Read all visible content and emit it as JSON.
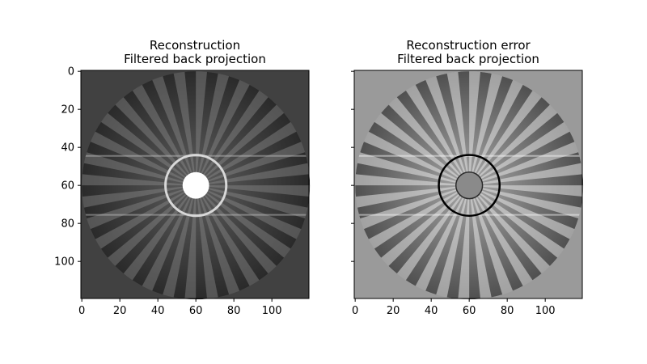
{
  "chart_data": [
    {
      "type": "heatmap",
      "title_line1": "Reconstruction",
      "title_line2": "Filtered back projection",
      "xticks": [
        0,
        20,
        40,
        60,
        80,
        100
      ],
      "yticks": [
        0,
        20,
        40,
        60,
        80,
        100
      ],
      "xlim": [
        -0.5,
        119.5
      ],
      "ylim": [
        119.5,
        -0.5
      ],
      "colormap": "gray",
      "image": {
        "size": 120,
        "disk_radius": 60,
        "background": "#414141",
        "spoke_count": 32,
        "center": [
          60,
          60
        ],
        "blob_radius": 7,
        "ring_radius": 16
      }
    },
    {
      "type": "heatmap",
      "title_line1": "Reconstruction error",
      "title_line2": "Filtered back projection",
      "xticks": [
        0,
        20,
        40,
        60,
        80,
        100
      ],
      "yticks": [
        0,
        20,
        40,
        60,
        80,
        100
      ],
      "xlim": [
        -0.5,
        119.5
      ],
      "ylim": [
        119.5,
        -0.5
      ],
      "colormap": "gray",
      "image": {
        "size": 120,
        "disk_radius": 60,
        "background": "#9a9a9a",
        "spoke_count": 32,
        "center": [
          60,
          60
        ],
        "blob_radius": 7,
        "ring_radius": 16
      }
    }
  ]
}
